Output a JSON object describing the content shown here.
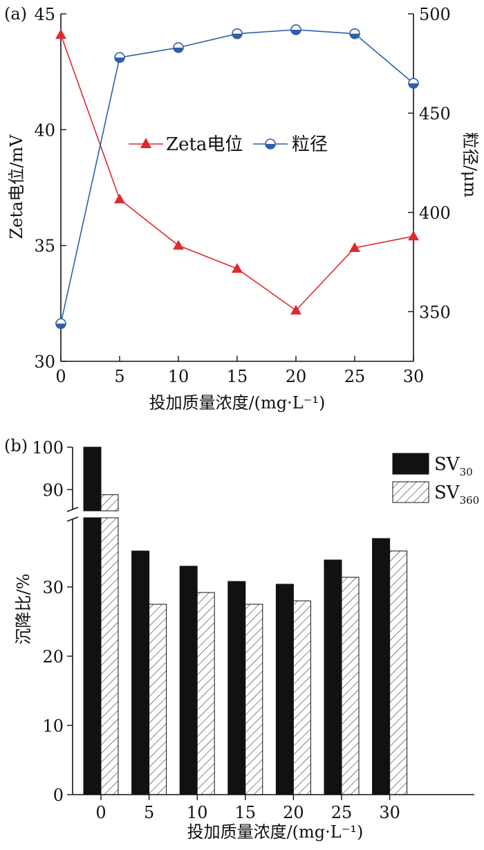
{
  "chart_data": [
    {
      "panel": "(a)",
      "type": "line",
      "x": [
        0,
        5,
        10,
        15,
        20,
        25,
        30
      ],
      "x_ticks": [
        "0",
        "5",
        "10",
        "15",
        "20",
        "25",
        "30"
      ],
      "xlabel": "投加质量浓度/(mg·L⁻¹)",
      "ylabel_left": "Zeta电位/mV",
      "ylabel_right": "粒径/μm",
      "ylim_left": [
        30,
        45
      ],
      "ylim_right": [
        325,
        500
      ],
      "y_ticks_left": [
        "30",
        "35",
        "40",
        "45"
      ],
      "y_ticks_right": [
        "350",
        "400",
        "450",
        "500"
      ],
      "grid": false,
      "legend_position": "center",
      "series": [
        {
          "name": "Zeta电位",
          "axis": "left",
          "marker": "triangle",
          "color": "#e0282e",
          "values": [
            44.1,
            37.0,
            35.0,
            34.0,
            32.2,
            34.9,
            35.4
          ]
        },
        {
          "name": "粒径",
          "axis": "right",
          "marker": "half-filled-circle",
          "color": "#2e5fa8",
          "values": [
            344,
            478,
            483,
            490,
            492,
            490,
            465
          ]
        }
      ]
    },
    {
      "panel": "(b)",
      "type": "bar",
      "categories": [
        "0",
        "5",
        "10",
        "15",
        "20",
        "25",
        "30"
      ],
      "xlabel": "投加质量浓度/(mg·L⁻¹)",
      "ylabel": "沉降比/%",
      "y_ticks_lower": [
        "0",
        "10",
        "20",
        "30"
      ],
      "y_ticks_upper": [
        "90",
        "100"
      ],
      "y_axis_break": [
        40,
        85
      ],
      "ylim": [
        0,
        100
      ],
      "grid": false,
      "legend_position": "top-right",
      "series": [
        {
          "name": "SV",
          "subscript": "30",
          "fill": "solid",
          "color": "#111111",
          "values": [
            100,
            35.2,
            33.0,
            30.8,
            30.4,
            33.9,
            37.0
          ]
        },
        {
          "name": "SV",
          "subscript": "360",
          "fill": "hatched",
          "color": "#ffffff",
          "values": [
            88.8,
            27.5,
            29.2,
            27.5,
            28.0,
            31.4,
            35.2
          ]
        }
      ]
    }
  ]
}
